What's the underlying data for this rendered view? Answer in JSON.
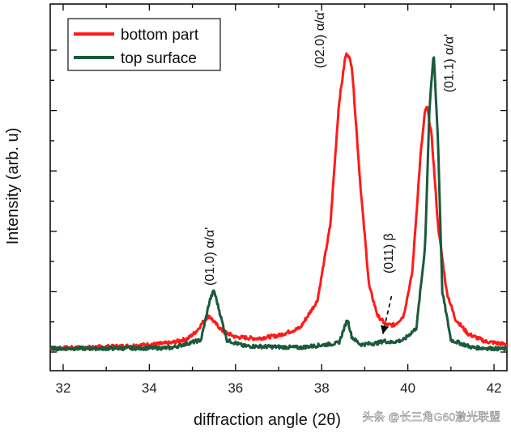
{
  "chart_data": {
    "type": "line",
    "xlabel": "diffraction angle (2θ)",
    "ylabel": "Intensity (arb. u)",
    "xlim": [
      31.7,
      42.3
    ],
    "ylim": [
      0,
      1.0
    ],
    "xticks": [
      "32",
      "34",
      "36",
      "38",
      "40",
      "42"
    ],
    "grid": false,
    "legend_position": "top-left",
    "series": [
      {
        "name": "bottom part",
        "color": "#ff1a1a",
        "x": [
          31.7,
          32.5,
          33.5,
          34.5,
          34.9,
          35.1,
          35.3,
          35.4,
          35.5,
          35.7,
          36.0,
          36.5,
          37.0,
          37.5,
          37.9,
          38.2,
          38.4,
          38.55,
          38.6,
          38.7,
          38.9,
          39.1,
          39.3,
          39.5,
          39.7,
          39.9,
          40.1,
          40.3,
          40.4,
          40.45,
          40.55,
          40.7,
          40.9,
          41.1,
          41.4,
          41.8,
          42.3
        ],
        "y": [
          0.012,
          0.015,
          0.02,
          0.03,
          0.045,
          0.07,
          0.11,
          0.12,
          0.1,
          0.07,
          0.05,
          0.045,
          0.055,
          0.08,
          0.17,
          0.42,
          0.82,
          0.98,
          0.99,
          0.95,
          0.55,
          0.22,
          0.12,
          0.09,
          0.09,
          0.12,
          0.26,
          0.66,
          0.8,
          0.81,
          0.72,
          0.42,
          0.2,
          0.11,
          0.06,
          0.035,
          0.025
        ]
      },
      {
        "name": "top surface",
        "color": "#1a5a3a",
        "x": [
          31.7,
          33.0,
          34.5,
          35.2,
          35.4,
          35.5,
          35.6,
          35.8,
          36.2,
          37.5,
          38.4,
          38.6,
          38.7,
          38.9,
          39.3,
          39.45,
          39.6,
          39.9,
          40.2,
          40.4,
          40.5,
          40.6,
          40.7,
          40.8,
          41.0,
          41.5,
          42.3
        ],
        "y": [
          0.012,
          0.012,
          0.014,
          0.04,
          0.17,
          0.205,
          0.15,
          0.04,
          0.02,
          0.015,
          0.03,
          0.11,
          0.05,
          0.025,
          0.03,
          0.037,
          0.032,
          0.04,
          0.08,
          0.35,
          0.8,
          0.99,
          0.7,
          0.2,
          0.04,
          0.015,
          0.01
        ]
      }
    ],
    "annotations": [
      {
        "text": "(01.0) α/α'",
        "x": 35.5,
        "y": 0.22
      },
      {
        "text": "(02.0) α/α'",
        "x": 38.05,
        "y": 0.94
      },
      {
        "text": "(011) β",
        "x": 39.65,
        "y": 0.26
      },
      {
        "text": "(01.1) α/α'",
        "x": 41.05,
        "y": 0.86
      }
    ]
  },
  "watermark": "头条 @长三角G60激光联盟"
}
